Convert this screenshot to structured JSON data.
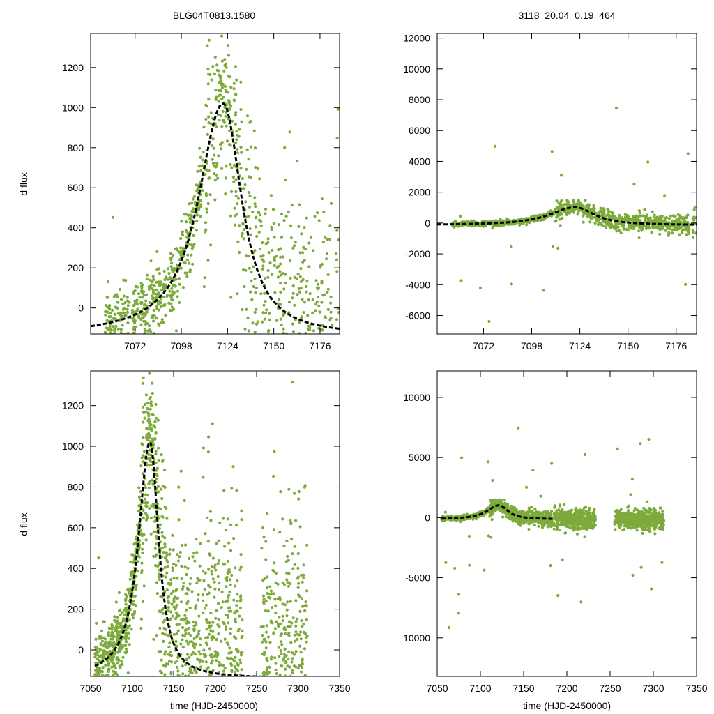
{
  "header": {
    "star_id": "BLG04T0813.1580",
    "stats": "3118  20.04  0.19  464"
  },
  "styles": {
    "point_color": "#7cab3c",
    "model_color": "#000000"
  },
  "chart_data": [
    {
      "id": "tl",
      "type": "scatter",
      "ylabel": "d flux",
      "xlabel": "",
      "xlim": [
        7047,
        7187
      ],
      "ylim": [
        -130,
        1370
      ],
      "xticks": [
        7072,
        7098,
        7124,
        7150,
        7176
      ],
      "yticks": [
        0,
        200,
        400,
        600,
        800,
        1000,
        1200
      ],
      "series": [
        {
          "kind": "points",
          "source": "obs"
        },
        {
          "kind": "model",
          "t0": 7121.5,
          "amp": 1160,
          "base": -140,
          "tau_l": 12,
          "tau_r": 9
        }
      ]
    },
    {
      "id": "tr",
      "type": "scatter",
      "ylabel": "",
      "xlabel": "",
      "xlim": [
        7047,
        7187
      ],
      "ylim": [
        -7200,
        12300
      ],
      "xticks": [
        7072,
        7098,
        7124,
        7150,
        7176
      ],
      "yticks": [
        -6000,
        -4000,
        -2000,
        0,
        2000,
        4000,
        6000,
        8000,
        10000,
        12000
      ],
      "series": [
        {
          "kind": "points",
          "source": "obs"
        },
        {
          "kind": "model",
          "t0": 7121.5,
          "amp": 1160,
          "base": -140,
          "tau_l": 12,
          "tau_r": 9
        }
      ]
    },
    {
      "id": "bl",
      "type": "scatter",
      "ylabel": "d flux",
      "xlabel": "time (HJD-2450000)",
      "xlim": [
        7050,
        7350
      ],
      "ylim": [
        -130,
        1370
      ],
      "xticks": [
        7050,
        7100,
        7150,
        7200,
        7250,
        7300,
        7350
      ],
      "yticks": [
        0,
        200,
        400,
        600,
        800,
        1000,
        1200
      ],
      "series": [
        {
          "kind": "points",
          "source": "obs"
        },
        {
          "kind": "model",
          "t0": 7121.5,
          "amp": 1160,
          "base": -140,
          "tau_l": 12,
          "tau_r": 9
        }
      ]
    },
    {
      "id": "br",
      "type": "scatter",
      "ylabel": "",
      "xlabel": "time (HJD-2450000)",
      "xlim": [
        7050,
        7350
      ],
      "ylim": [
        -13200,
        12200
      ],
      "xticks": [
        7050,
        7100,
        7150,
        7200,
        7250,
        7300,
        7350
      ],
      "yticks": [
        -10000,
        -5000,
        0,
        5000,
        10000
      ],
      "series": [
        {
          "kind": "points",
          "source": "obs"
        },
        {
          "kind": "model",
          "t0": 7121.5,
          "amp": 1160,
          "base": -140,
          "tau_l": 12,
          "tau_r": 9
        }
      ]
    }
  ],
  "observations": {
    "seasons": [
      [
        7055,
        7183
      ],
      [
        7185,
        7233
      ],
      [
        7255,
        7312
      ]
    ],
    "noise_by_season": [
      [
        7055,
        7110,
        90
      ],
      [
        7110,
        7135,
        260
      ],
      [
        7135,
        7183,
        280
      ],
      [
        7185,
        7233,
        420
      ],
      [
        7255,
        7312,
        380
      ]
    ]
  }
}
